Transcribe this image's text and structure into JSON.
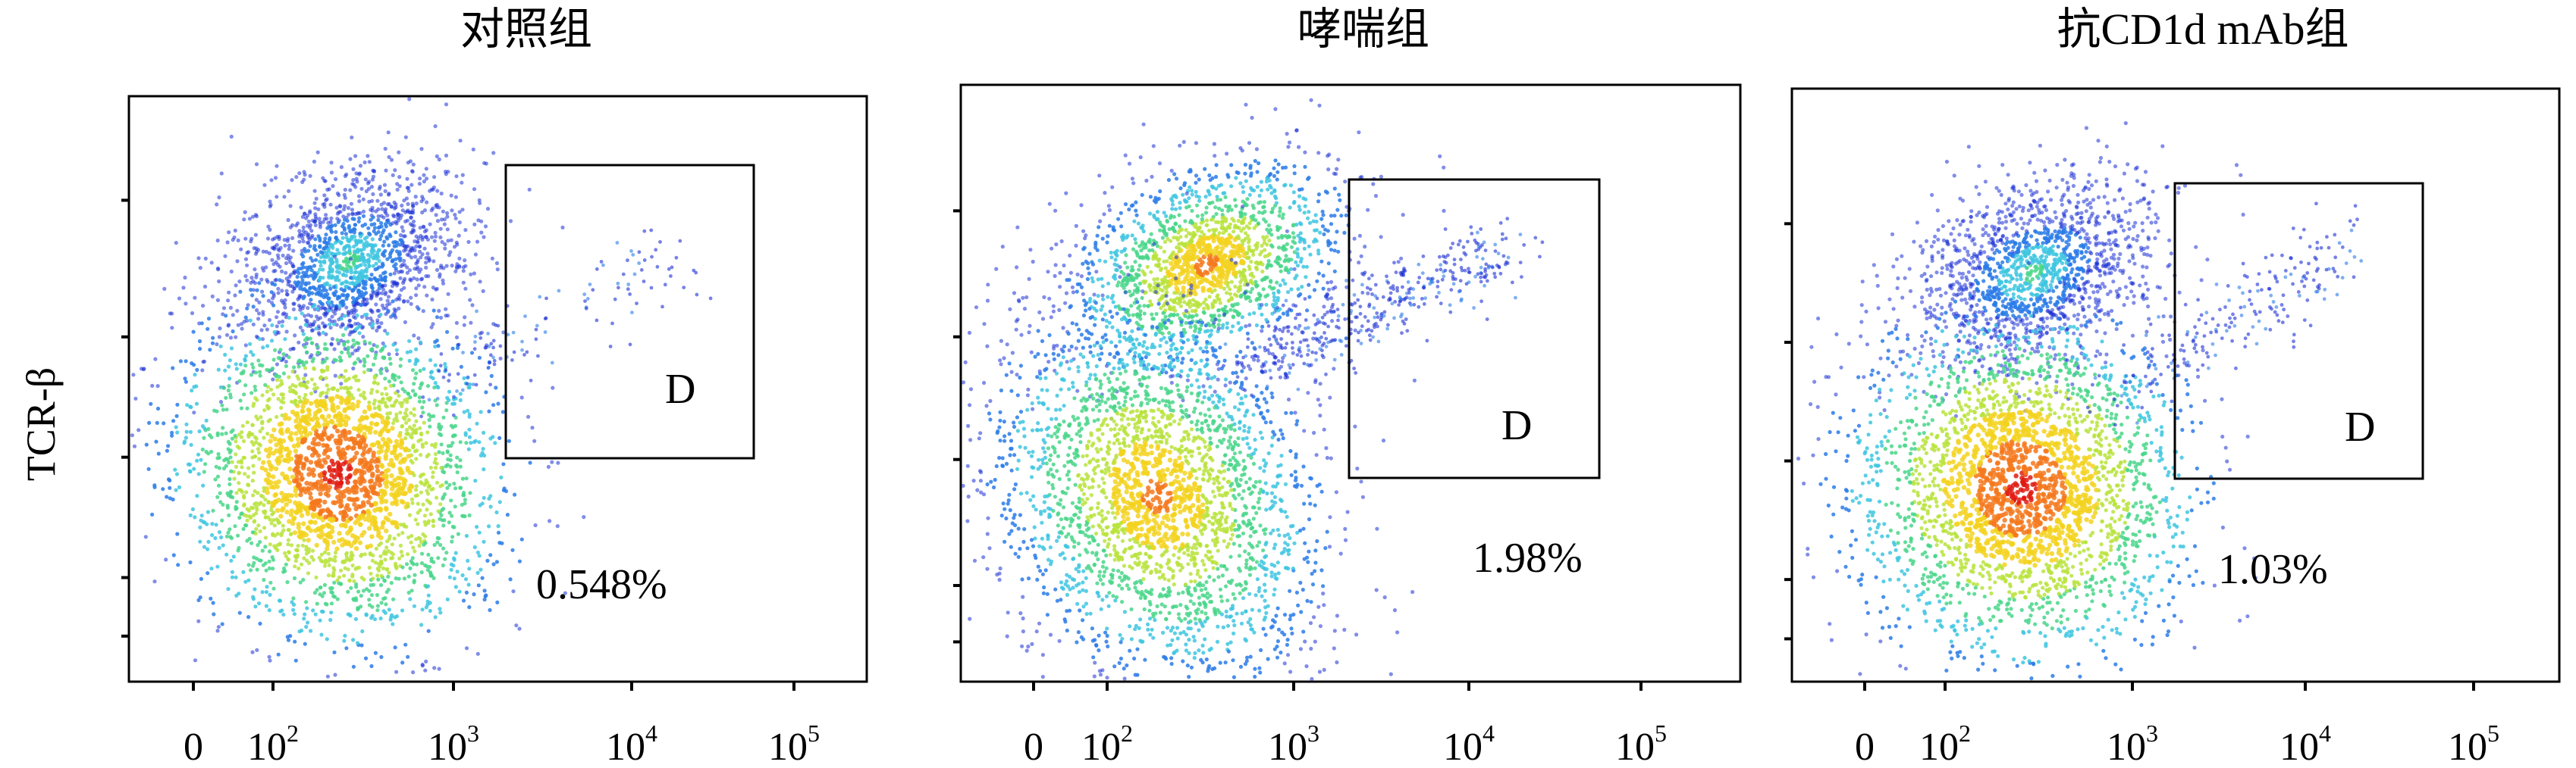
{
  "figure": {
    "ylabel": "TCR-β"
  },
  "chart_data": [
    {
      "type": "scatter",
      "title": "对照组",
      "xlabel": "",
      "ylabel": "TCR-β",
      "x_scale": "log",
      "x_tick_labels": [
        "0",
        "10",
        "10",
        "10",
        "10"
      ],
      "x_tick_exponents": [
        "",
        "2",
        "3",
        "4",
        "5"
      ],
      "gate": {
        "label": "D",
        "percent": "0.548%"
      },
      "density": "high"
    },
    {
      "type": "scatter",
      "title": "哮喘组",
      "xlabel": "",
      "ylabel": "",
      "x_scale": "log",
      "x_tick_labels": [
        "0",
        "10",
        "10",
        "10",
        "10"
      ],
      "x_tick_exponents": [
        "",
        "2",
        "3",
        "4",
        "5"
      ],
      "gate": {
        "label": "D",
        "percent": "1.98%"
      },
      "density": "high"
    },
    {
      "type": "scatter",
      "title": "抗CD1d mAb组",
      "xlabel": "",
      "ylabel": "",
      "x_scale": "log",
      "x_tick_labels": [
        "0",
        "10",
        "10",
        "10",
        "10"
      ],
      "x_tick_exponents": [
        "",
        "2",
        "3",
        "4",
        "5"
      ],
      "gate": {
        "label": "D",
        "percent": "1.03%"
      },
      "density": "high"
    }
  ],
  "colors": {
    "density_scale": [
      "#1a2fd6",
      "#2a7be8",
      "#3ec6e0",
      "#49d68a",
      "#b9e33c",
      "#f3d21f",
      "#f4781c",
      "#e01b12"
    ],
    "axis": "#000000"
  }
}
